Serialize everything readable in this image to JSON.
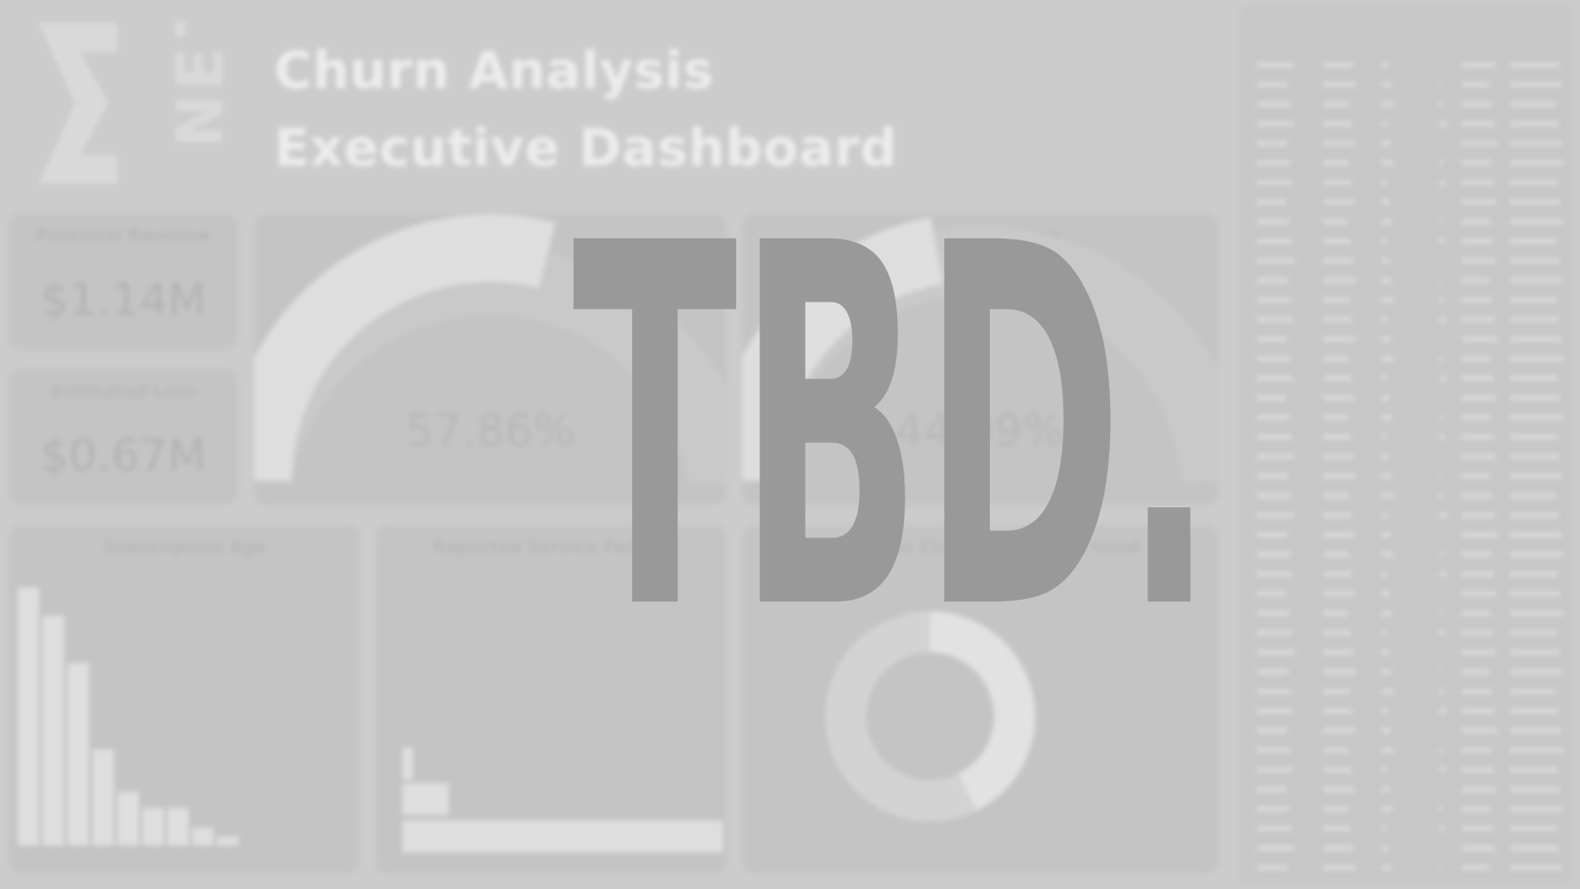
{
  "header": {
    "title_line1": "Churn Analysis",
    "title_line2": "Executive Dashboard",
    "logo_letters": [
      "N",
      "E",
      "T"
    ]
  },
  "kpis": {
    "potential_revenue": {
      "label": "Potential Revenue",
      "value": "$1.14M"
    },
    "estimated_loss": {
      "label": "Estimated Loss",
      "value": "$0.67M"
    }
  },
  "gauges": {
    "churn_rate": {
      "label": "Churn Rate",
      "value": "57.86%",
      "fraction": 0.5786
    },
    "churn_prediction": {
      "label": "Churn Prediction",
      "value": "44.09%",
      "fraction": 0.4409
    }
  },
  "charts": {
    "subscription_age": {
      "label": "Subscription Age"
    },
    "service_failures": {
      "label": "Reported Service Failure"
    },
    "churn_by_product": {
      "label": "Customer Churn by Product Used"
    }
  },
  "overlay": {
    "text": "TBD."
  },
  "colors": {
    "background": "#cccccc",
    "card": "#c4c4c4",
    "mark": "#dedede",
    "overlay_text": "#999999"
  }
}
